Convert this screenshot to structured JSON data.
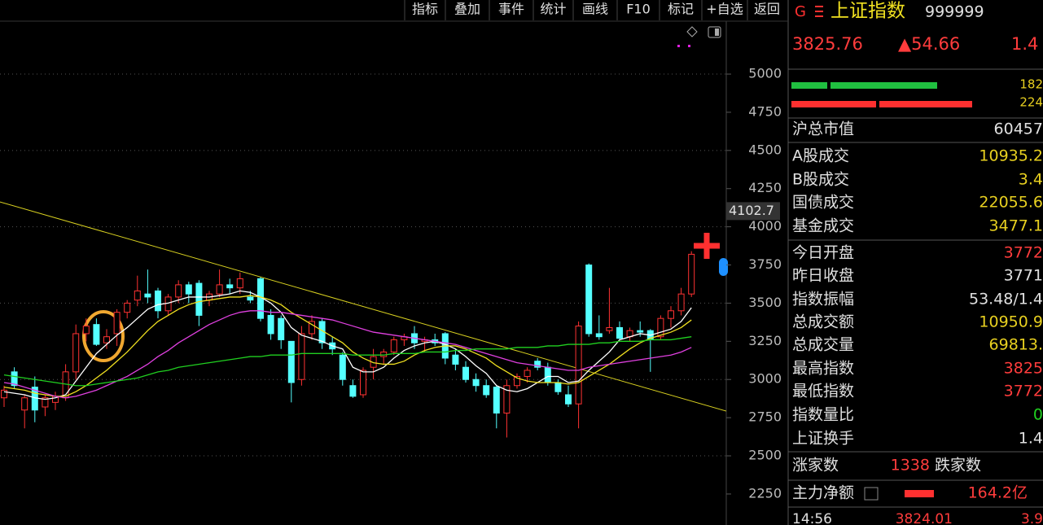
{
  "toolbar": [
    "指标",
    "叠加",
    "事件",
    "统计",
    "画线",
    "F10",
    "标记",
    "+自选",
    "返回"
  ],
  "chart_data": {
    "type": "candlestick",
    "ylim": [
      2047,
      5336
    ],
    "yticks": [
      2250,
      2500,
      2750,
      3000,
      3250,
      3500,
      3750,
      4000,
      4250,
      4500,
      4750,
      5000
    ],
    "grid": true,
    "price_label": 4102.7,
    "up_color": "#ff3232",
    "down_color": "#54ffff",
    "open": [
      2880,
      3050,
      2800,
      2950,
      2820,
      2850,
      2880,
      3050,
      3300,
      3360,
      3240,
      3300,
      3440,
      3520,
      3560,
      3580,
      3450,
      3540,
      3620,
      3630,
      3520,
      3560,
      3620,
      3600,
      3540,
      3660,
      3420,
      3400,
      3250,
      3000,
      3300,
      3380,
      3240,
      3160,
      2960,
      2900,
      3080,
      3150,
      3180,
      3260,
      3300,
      3250,
      3260,
      3300,
      3160,
      3080,
      3000,
      2960,
      2950,
      2780,
      2960,
      3020,
      3120,
      3080,
      2980,
      2900,
      2840,
      3750,
      3300,
      3320,
      3340,
      3280,
      3320,
      3320,
      3280,
      3400,
      3450,
      3560
    ],
    "high": [
      2960,
      3080,
      2900,
      3020,
      2900,
      2920,
      3100,
      3360,
      3400,
      3400,
      3330,
      3460,
      3520,
      3680,
      3720,
      3600,
      3560,
      3650,
      3640,
      3650,
      3580,
      3720,
      3660,
      3700,
      3580,
      3670,
      3460,
      3420,
      3250,
      3350,
      3420,
      3400,
      3280,
      3180,
      3000,
      3080,
      3200,
      3200,
      3280,
      3300,
      3350,
      3280,
      3300,
      3310,
      3200,
      3120,
      3040,
      3000,
      2960,
      3000,
      3040,
      3080,
      3140,
      3110,
      3000,
      2960,
      3380,
      3760,
      3420,
      3600,
      3380,
      3340,
      3380,
      3330,
      3420,
      3480,
      3600,
      3840
    ],
    "low": [
      2820,
      2940,
      2680,
      2720,
      2760,
      2800,
      2860,
      3000,
      3250,
      3220,
      3200,
      3220,
      3400,
      3480,
      3500,
      3400,
      3420,
      3500,
      3500,
      3350,
      3480,
      3540,
      3560,
      3560,
      3500,
      3380,
      3260,
      3200,
      2850,
      2960,
      3260,
      3200,
      3160,
      2960,
      2880,
      2880,
      3000,
      3100,
      3160,
      3220,
      3200,
      3180,
      3220,
      3100,
      3060,
      2980,
      2920,
      2880,
      2680,
      2620,
      2940,
      2980,
      3060,
      2960,
      2900,
      2820,
      2680,
      3280,
      3260,
      3300,
      3260,
      3250,
      3280,
      3050,
      3260,
      3340,
      3420,
      3540
    ],
    "close": [
      2930,
      2960,
      2880,
      2800,
      2880,
      2890,
      3050,
      3300,
      3350,
      3230,
      3280,
      3440,
      3500,
      3580,
      3540,
      3450,
      3540,
      3620,
      3560,
      3420,
      3560,
      3620,
      3600,
      3660,
      3520,
      3400,
      3300,
      3260,
      2980,
      3300,
      3380,
      3240,
      3200,
      3000,
      2890,
      3060,
      3150,
      3180,
      3260,
      3280,
      3240,
      3260,
      3240,
      3140,
      3100,
      3000,
      2960,
      2900,
      2780,
      2960,
      3020,
      3060,
      3080,
      2980,
      2920,
      2840,
      3350,
      3300,
      3280,
      3340,
      3270,
      3320,
      3310,
      3260,
      3400,
      3450,
      3560,
      3820
    ],
    "series": [
      {
        "name": "MA5",
        "color": "#ffffff",
        "values": [
          2920,
          2910,
          2900,
          2880,
          2870,
          2880,
          2900,
          2990,
          3080,
          3170,
          3230,
          3290,
          3340,
          3400,
          3460,
          3490,
          3500,
          3520,
          3540,
          3540,
          3540,
          3550,
          3560,
          3580,
          3570,
          3540,
          3500,
          3440,
          3340,
          3290,
          3270,
          3250,
          3220,
          3200,
          3080,
          3050,
          3050,
          3080,
          3140,
          3190,
          3220,
          3240,
          3250,
          3230,
          3200,
          3150,
          3090,
          3040,
          2960,
          2930,
          2920,
          2940,
          2980,
          3020,
          3020,
          2980,
          2990,
          3060,
          3120,
          3180,
          3260,
          3280,
          3300,
          3290,
          3310,
          3330,
          3380,
          3470
        ]
      },
      {
        "name": "MA10",
        "color": "#f0e020",
        "values": [
          2950,
          2940,
          2930,
          2910,
          2900,
          2890,
          2890,
          2920,
          2960,
          3010,
          3060,
          3120,
          3180,
          3250,
          3320,
          3380,
          3420,
          3460,
          3490,
          3510,
          3520,
          3530,
          3540,
          3540,
          3550,
          3540,
          3520,
          3490,
          3440,
          3400,
          3360,
          3320,
          3280,
          3240,
          3180,
          3140,
          3110,
          3100,
          3100,
          3120,
          3160,
          3190,
          3210,
          3220,
          3220,
          3200,
          3170,
          3140,
          3090,
          3050,
          3010,
          2990,
          2980,
          2980,
          2980,
          2970,
          2980,
          3020,
          3060,
          3100,
          3150,
          3200,
          3240,
          3270,
          3290,
          3310,
          3340,
          3390
        ]
      },
      {
        "name": "MA20",
        "color": "#e040e0",
        "values": [
          2980,
          2970,
          2950,
          2930,
          2910,
          2890,
          2880,
          2890,
          2910,
          2930,
          2960,
          2990,
          3020,
          3060,
          3100,
          3150,
          3190,
          3240,
          3280,
          3320,
          3360,
          3390,
          3420,
          3440,
          3450,
          3450,
          3440,
          3440,
          3430,
          3420,
          3410,
          3400,
          3390,
          3370,
          3350,
          3330,
          3310,
          3300,
          3290,
          3280,
          3270,
          3260,
          3250,
          3240,
          3230,
          3210,
          3190,
          3170,
          3150,
          3130,
          3110,
          3100,
          3090,
          3080,
          3070,
          3060,
          3060,
          3080,
          3090,
          3100,
          3110,
          3120,
          3130,
          3140,
          3150,
          3160,
          3180,
          3210
        ]
      },
      {
        "name": "MA60",
        "color": "#20d020",
        "values": [
          3030,
          3020,
          3010,
          3000,
          2990,
          2980,
          2970,
          2960,
          2960,
          2970,
          2980,
          2990,
          3000,
          3010,
          3030,
          3050,
          3060,
          3080,
          3090,
          3100,
          3110,
          3120,
          3130,
          3140,
          3150,
          3150,
          3160,
          3160,
          3160,
          3170,
          3170,
          3170,
          3170,
          3170,
          3160,
          3160,
          3160,
          3160,
          3170,
          3170,
          3170,
          3180,
          3180,
          3180,
          3190,
          3190,
          3200,
          3200,
          3200,
          3200,
          3210,
          3210,
          3210,
          3220,
          3220,
          3230,
          3230,
          3230,
          3240,
          3240,
          3250,
          3250,
          3250,
          3260,
          3260,
          3260,
          3270,
          3280
        ]
      }
    ],
    "trendline": {
      "color": "#d8d020",
      "values": [
        4163,
        2793
      ]
    }
  },
  "quote": {
    "marker": "G",
    "name": "上证指数",
    "code": "999999",
    "price": "3825.76",
    "change": "▲54.66",
    "pct": "1.4"
  },
  "volume_bars": [
    "182",
    "224"
  ],
  "stats": [
    [
      {
        "label": "沪总市值",
        "value": "60457",
        "color": "#e0e0e0"
      }
    ],
    [
      {
        "label": "A股成交",
        "value": "10935.2",
        "color": "#e8d020"
      },
      {
        "label": "B股成交",
        "value": "3.4",
        "color": "#e8d020"
      },
      {
        "label": "国债成交",
        "value": "22055.6",
        "color": "#e8d020"
      },
      {
        "label": "基金成交",
        "value": "3477.1",
        "color": "#e8d020"
      }
    ],
    [
      {
        "label": "今日开盘",
        "value": "3772",
        "color": "#ff3c3c"
      },
      {
        "label": "昨日收盘",
        "value": "3771",
        "color": "#e0e0e0"
      },
      {
        "label": "指数振幅",
        "value": "53.48/1.4",
        "color": "#e0e0e0"
      },
      {
        "label": "总成交额",
        "value": "10950.9",
        "color": "#e8d020"
      },
      {
        "label": "总成交量",
        "value": "69813.",
        "color": "#e8d020"
      },
      {
        "label": "最高指数",
        "value": "3825",
        "color": "#ff3c3c"
      },
      {
        "label": "最低指数",
        "value": "3772",
        "color": "#ff3c3c"
      },
      {
        "label": "指数量比",
        "value": "0",
        "color": "#20d020"
      },
      {
        "label": "上证换手",
        "value": "1.4",
        "color": "#e0e0e0"
      }
    ]
  ],
  "breadth": {
    "up_label": "涨家数",
    "up": "1338",
    "down_label": "跌家数"
  },
  "flow": {
    "label": "主力净额",
    "value": "164.2亿"
  },
  "last_tick": {
    "time": "14:56",
    "price": "3824.01",
    "change": "3.9"
  }
}
